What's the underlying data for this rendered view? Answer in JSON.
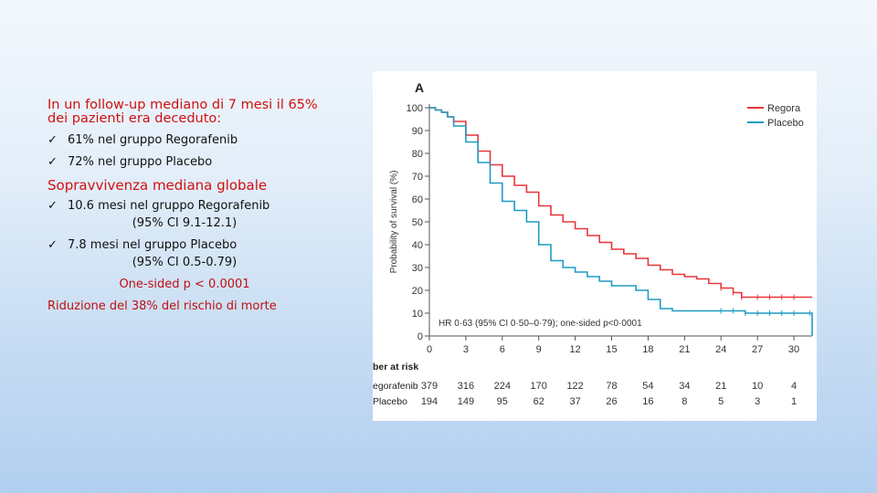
{
  "left_panel": {
    "intro": "In un follow-up mediano di 7 mesi il 65% dei pazienti era deceduto:",
    "bullets_deaths": [
      "61% nel gruppo Regorafenib",
      "72% nel gruppo Placebo"
    ],
    "section_title": "Sopravvivenza mediana globale",
    "median_regorafenib": "10.6 mesi nel gruppo Regorafenib",
    "ci_regorafenib": "(95% CI 9.1-12.1)",
    "median_placebo": "7.8 mesi nel gruppo Placebo",
    "ci_placebo": "(95% CI 0.5-0.79)",
    "p_value": "One-sided p < 0.0001",
    "risk_reduction": "Riduzione del 38% del rischio di morte",
    "check_glyph": "ü"
  },
  "chart_data": {
    "type": "line",
    "panel_label": "A",
    "ylabel": "Probability of survival (%)",
    "xlabel": "",
    "x_ticks": [
      0,
      3,
      6,
      9,
      12,
      15,
      18,
      21,
      24,
      27,
      30
    ],
    "y_ticks": [
      0,
      10,
      20,
      30,
      40,
      50,
      60,
      70,
      80,
      90,
      100
    ],
    "xlim": [
      0,
      31.5
    ],
    "ylim": [
      0,
      100
    ],
    "annotation": "HR 0·63 (95% CI 0·50–0·79); one-sided p<0·0001",
    "legend": [
      "Regora",
      "Placebo"
    ],
    "legend_position": "top-right",
    "colors": {
      "regorafenib": "#e8363a",
      "placebo": "#1e9cc4",
      "axis": "#555555"
    },
    "series": [
      {
        "name": "Regorafenib",
        "x": [
          0,
          0.5,
          1,
          1.5,
          2,
          3,
          4,
          5,
          6,
          7,
          8,
          9,
          10,
          11,
          12,
          13,
          14,
          15,
          16,
          17,
          18,
          19,
          20,
          21,
          22,
          23,
          24,
          25,
          25.7,
          27,
          28,
          29,
          30,
          31.5
        ],
        "y": [
          100,
          99,
          98,
          96,
          94,
          88,
          81,
          75,
          70,
          66,
          63,
          57,
          53,
          50,
          47,
          44,
          41,
          38,
          36,
          34,
          31,
          29,
          27,
          26,
          25,
          23,
          21,
          19,
          17,
          17,
          17,
          17,
          17,
          17
        ]
      },
      {
        "name": "Placebo",
        "x": [
          0,
          0.5,
          1,
          1.5,
          2,
          3,
          4,
          5,
          6,
          7,
          8,
          9,
          10,
          11,
          12,
          13,
          14,
          15,
          16,
          17,
          18,
          19,
          20,
          21,
          22,
          23,
          24,
          25,
          26,
          27,
          28,
          29,
          30,
          31.3,
          31.5
        ],
        "y": [
          100,
          99,
          98,
          96,
          92,
          85,
          76,
          67,
          59,
          55,
          50,
          40,
          33,
          30,
          28,
          26,
          24,
          22,
          22,
          20,
          16,
          12,
          11,
          11,
          11,
          11,
          11,
          11,
          10,
          10,
          10,
          10,
          10,
          10,
          0
        ]
      }
    ],
    "risk_table": {
      "title": "ber at risk",
      "rows": [
        {
          "label": "egorafenib",
          "values": [
            379,
            316,
            224,
            170,
            122,
            78,
            54,
            34,
            21,
            10,
            4
          ]
        },
        {
          "label": "Placebo",
          "values": [
            194,
            149,
            95,
            62,
            37,
            26,
            16,
            8,
            5,
            3,
            1
          ]
        }
      ]
    }
  }
}
